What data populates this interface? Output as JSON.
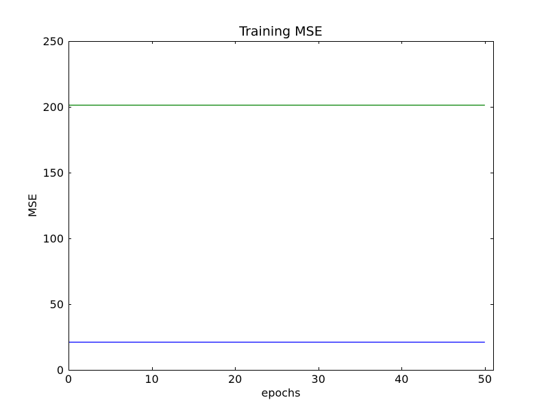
{
  "chart_data": {
    "type": "line",
    "title": "Training MSE",
    "xlabel": "epochs",
    "ylabel": "MSE",
    "xlim": [
      0,
      51
    ],
    "ylim": [
      0,
      250
    ],
    "x_ticks": [
      0,
      10,
      20,
      30,
      40,
      50
    ],
    "y_ticks": [
      0,
      50,
      100,
      150,
      200,
      250
    ],
    "grid": false,
    "series": [
      {
        "color": "#008000",
        "x": [
          0,
          50
        ],
        "y": [
          201.5,
          201.5
        ]
      },
      {
        "color": "#0000ff",
        "x": [
          0,
          50
        ],
        "y": [
          21.5,
          21.5
        ]
      }
    ]
  }
}
